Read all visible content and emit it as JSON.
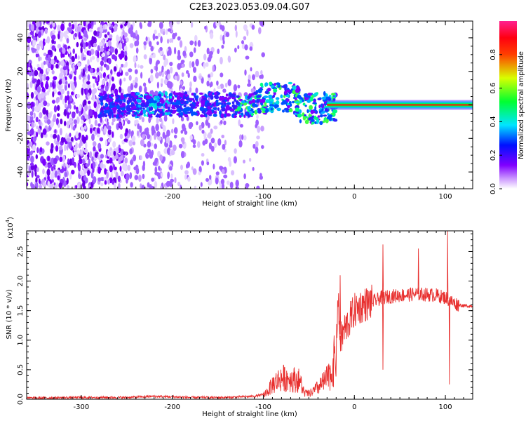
{
  "title": "C2E3.2023.053.09.04.G07",
  "colors": {
    "line": "#e8302f",
    "axis": "#000000"
  },
  "chart_data": [
    {
      "type": "heatmap",
      "xlabel": "Height of straight line (km)",
      "ylabel": "Frequency (Hz)",
      "xlim": [
        -360,
        130
      ],
      "ylim": [
        -50,
        50
      ],
      "xticks": [
        -300,
        -200,
        -100,
        0,
        100
      ],
      "yticks": [
        -40,
        -20,
        0,
        20,
        40
      ],
      "colorbar": {
        "label": "Normalized spectral amplitude",
        "range": [
          0,
          1
        ],
        "ticks": [
          "0.0",
          "0.2",
          "0.4",
          "0.6",
          "0.8"
        ],
        "colormap": "rainbow (white-violet-blue-cyan-green-yellow-red-magenta)"
      },
      "description_points": [
        {
          "x": -360,
          "noise": "dense violet speckle"
        },
        {
          "x": -240,
          "noise": "sparse light speckle"
        },
        {
          "x": -100,
          "noise": "noise ends"
        },
        {
          "x": -20,
          "line": "strong 0 Hz carrier starts"
        },
        {
          "x": 130,
          "line": "strong 0 Hz carrier"
        }
      ]
    },
    {
      "type": "line",
      "xlabel": "Height of straight line (km)",
      "ylabel": "SNR (10 * v/v)",
      "scale_label": "(x10",
      "scale_exp": "4",
      "scale_close": ")",
      "xlim": [
        -360,
        130
      ],
      "ylim": [
        0,
        2.85
      ],
      "xticks": [
        -300,
        -200,
        -100,
        0,
        100
      ],
      "yticks": [
        "0.0",
        "0.5",
        "1.0",
        "1.5",
        "2.0",
        "2.5"
      ],
      "series": [
        {
          "x": [
            -360,
            -300,
            -250,
            -220,
            -180,
            -140,
            -110,
            -100,
            -95,
            -90,
            -80,
            -70,
            -60,
            -55,
            -50,
            -45,
            -40,
            -35,
            -30,
            -25,
            -20,
            -18,
            -16,
            -14,
            -12,
            -10,
            -5,
            0,
            5,
            10,
            15,
            20,
            25,
            30,
            40,
            50,
            60,
            70,
            80,
            90,
            100,
            110,
            120,
            130
          ],
          "y": [
            0.02,
            0.03,
            0.03,
            0.05,
            0.03,
            0.03,
            0.05,
            0.08,
            0.15,
            0.28,
            0.4,
            0.38,
            0.35,
            0.12,
            0.1,
            0.15,
            0.22,
            0.3,
            0.38,
            0.5,
            0.9,
            1.7,
            1.1,
            1.0,
            1.15,
            1.2,
            1.35,
            1.5,
            1.55,
            1.6,
            1.62,
            1.65,
            1.68,
            1.72,
            1.74,
            1.76,
            1.77,
            1.78,
            1.77,
            1.76,
            1.72,
            1.62,
            1.58,
            1.58
          ]
        }
      ],
      "spikes": [
        {
          "x": -16,
          "y": 2.1
        },
        {
          "x": 31,
          "y": 2.62
        },
        {
          "x": 70,
          "y": 2.55
        },
        {
          "x": 102,
          "y": 2.85
        },
        {
          "x": 104,
          "y": 0.25
        },
        {
          "x": 31,
          "y": 0.5
        }
      ]
    }
  ]
}
